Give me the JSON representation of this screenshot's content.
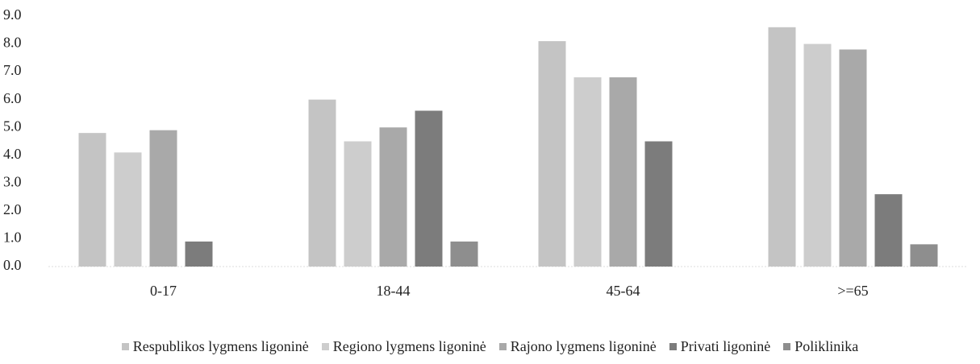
{
  "chart_data": {
    "type": "bar",
    "categories": [
      "0-17",
      "18-44",
      "45-64",
      ">=65"
    ],
    "series": [
      {
        "name": "Respublikos lygmens ligoninė",
        "color": "#c4c4c4",
        "values": [
          4.8,
          6.0,
          8.1,
          8.6
        ]
      },
      {
        "name": "Regiono lygmens ligoninė",
        "color": "#cdcdcd",
        "values": [
          4.1,
          4.5,
          6.8,
          8.0
        ]
      },
      {
        "name": "Rajono lygmens ligoninė",
        "color": "#a9a9a9",
        "values": [
          4.9,
          5.0,
          6.8,
          7.8
        ]
      },
      {
        "name": "Privati ligoninė",
        "color": "#7c7c7c",
        "values": [
          0.9,
          5.6,
          4.5,
          2.6
        ]
      },
      {
        "name": "Poliklinika",
        "color": "#8e8e8e",
        "values": [
          null,
          0.9,
          null,
          0.8
        ]
      }
    ],
    "ylim": [
      0,
      9
    ],
    "yticks": [
      {
        "value": 0,
        "label": "0.0"
      },
      {
        "value": 1,
        "label": "1.0"
      },
      {
        "value": 2,
        "label": "2.0"
      },
      {
        "value": 3,
        "label": "3.0"
      },
      {
        "value": 4,
        "label": "4.0"
      },
      {
        "value": 5,
        "label": "5.0"
      },
      {
        "value": 6,
        "label": "6.0"
      },
      {
        "value": 7,
        "label": "7.0"
      },
      {
        "value": 8,
        "label": "8.0"
      },
      {
        "value": 9,
        "label": "9.0"
      }
    ],
    "legend": "bottom"
  }
}
